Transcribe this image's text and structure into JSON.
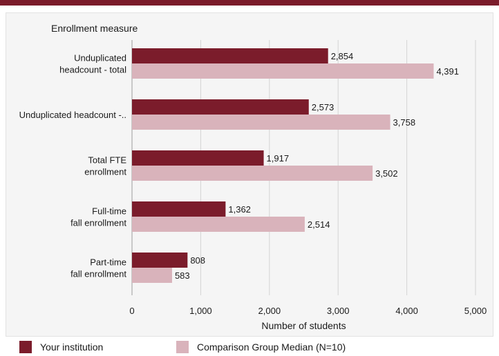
{
  "chart_data": {
    "type": "bar",
    "orientation": "horizontal",
    "y_axis_title": "Enrollment measure",
    "xlabel": "Number of students",
    "categories": [
      [
        "Unduplicated",
        "headcount - total"
      ],
      [
        "Unduplicated headcount -.."
      ],
      [
        "Total FTE",
        "enrollment"
      ],
      [
        "Full-time",
        "fall enrollment"
      ],
      [
        "Part-time",
        "fall enrollment"
      ]
    ],
    "series": [
      {
        "name": "Your institution",
        "color": "#7b1c2b",
        "values": [
          2854,
          2573,
          1917,
          1362,
          808
        ],
        "labels": [
          "2,854",
          "2,573",
          "1,917",
          "1,362",
          "808"
        ]
      },
      {
        "name": "Comparison Group Median (N=10)",
        "color": "#d9b3bb",
        "values": [
          4391,
          3758,
          3502,
          2514,
          583
        ],
        "labels": [
          "4,391",
          "3,758",
          "3,502",
          "2,514",
          "583"
        ]
      }
    ],
    "xlim": [
      0,
      5000
    ],
    "xticks": [
      0,
      1000,
      2000,
      3000,
      4000,
      5000
    ],
    "xtick_labels": [
      "0",
      "1,000",
      "2,000",
      "3,000",
      "4,000",
      "5,000"
    ],
    "grid": true,
    "legend_position": "bottom"
  }
}
